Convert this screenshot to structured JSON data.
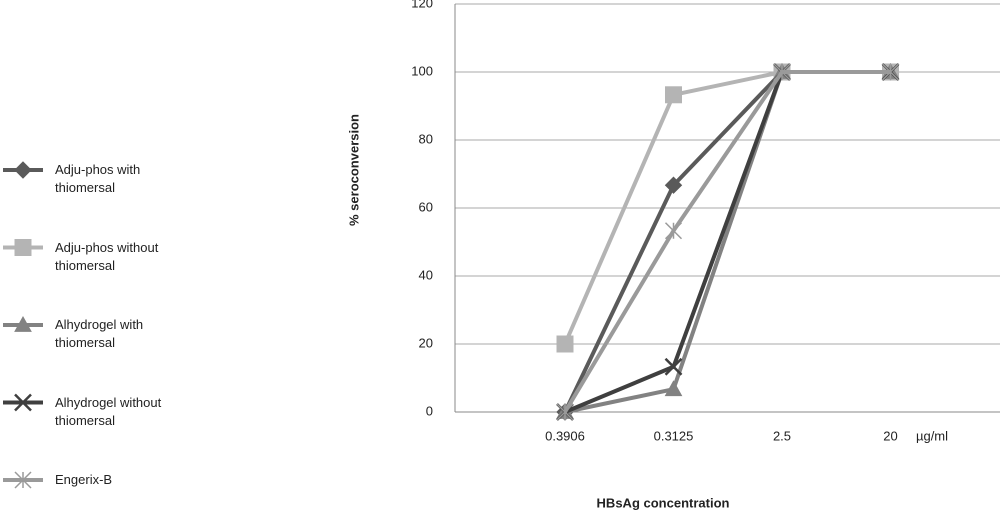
{
  "chart_data": {
    "type": "line",
    "y_label": "% seroconversion",
    "x_label": "HBsAg concentration",
    "x_unit": "µg/ml",
    "categories": [
      "0.3906",
      "0.3125",
      "2.5",
      "20"
    ],
    "ylim": [
      0,
      120
    ],
    "yticks": [
      0,
      20,
      40,
      60,
      80,
      100,
      120
    ],
    "grid": true,
    "legend": "left",
    "series": [
      {
        "name": "Adju-phos with thiomersal",
        "color": "#5a5a5a",
        "marker": "diamond",
        "values": [
          0,
          66.7,
          100,
          100
        ]
      },
      {
        "name": "Adju-phos without thiomersal",
        "color": "#b4b4b4",
        "marker": "square",
        "values": [
          20,
          93.3,
          100,
          100
        ]
      },
      {
        "name": "Alhydrogel with thiomersal",
        "color": "#828282",
        "marker": "triangle",
        "values": [
          0,
          6.7,
          100,
          100
        ]
      },
      {
        "name": "Alhydrogel without thiomersal",
        "color": "#3f3f3f",
        "marker": "x",
        "values": [
          0,
          13.3,
          100,
          100
        ]
      },
      {
        "name": "Engerix-B",
        "color": "#9a9a9a",
        "marker": "star",
        "values": [
          0,
          53.3,
          100,
          100
        ]
      }
    ]
  }
}
